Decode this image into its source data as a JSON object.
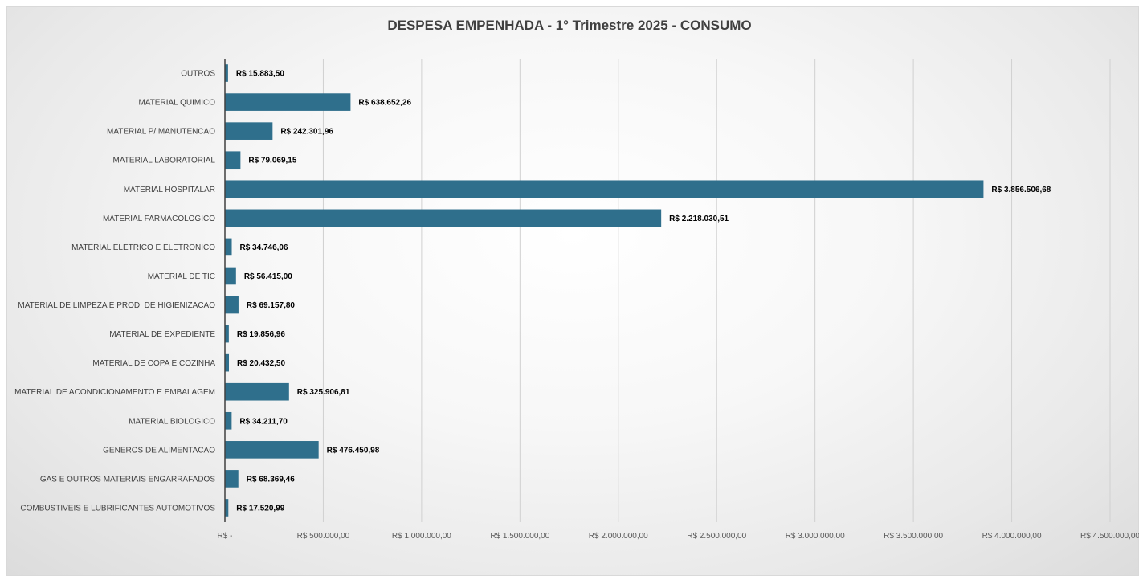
{
  "chart_data": {
    "type": "bar",
    "orientation": "horizontal",
    "title": "DESPESA EMPENHADA  - 1° Trimestre 2025 - CONSUMO",
    "xlabel": "",
    "ylabel": "",
    "xlim": [
      0,
      4500000
    ],
    "grid": true,
    "legend": "none",
    "bar_color": "#2f6f8c",
    "categories": [
      "OUTROS",
      "MATERIAL QUIMICO",
      "MATERIAL P/ MANUTENCAO",
      "MATERIAL LABORATORIAL",
      "MATERIAL HOSPITALAR",
      "MATERIAL FARMACOLOGICO",
      "MATERIAL ELETRICO E ELETRONICO",
      "MATERIAL DE TIC",
      "MATERIAL DE LIMPEZA E PROD. DE HIGIENIZACAO",
      "MATERIAL DE EXPEDIENTE",
      "MATERIAL DE COPA E COZINHA",
      "MATERIAL DE ACONDICIONAMENTO E EMBALAGEM",
      "MATERIAL BIOLOGICO",
      "GENEROS DE ALIMENTACAO",
      "GAS E OUTROS MATERIAIS ENGARRAFADOS",
      "COMBUSTIVEIS E LUBRIFICANTES AUTOMOTIVOS"
    ],
    "values": [
      15883.5,
      638652.26,
      242301.96,
      79069.15,
      3856506.68,
      2218030.51,
      34746.06,
      56415.0,
      69157.8,
      19856.96,
      20432.5,
      325906.81,
      34211.7,
      476450.98,
      68369.46,
      17520.99
    ],
    "data_labels": [
      "R$ 15.883,50",
      "R$ 638.652,26",
      "R$ 242.301,96",
      "R$ 79.069,15",
      "R$ 3.856.506,68",
      "R$ 2.218.030,51",
      "R$ 34.746,06",
      "R$ 56.415,00",
      "R$ 69.157,80",
      "R$ 19.856,96",
      "R$ 20.432,50",
      "R$ 325.906,81",
      "R$ 34.211,70",
      "R$ 476.450,98",
      "R$ 68.369,46",
      "R$ 17.520,99"
    ],
    "x_ticks": [
      0,
      500000,
      1000000,
      1500000,
      2000000,
      2500000,
      3000000,
      3500000,
      4000000,
      4500000
    ],
    "x_tick_labels": [
      "R$ -",
      "R$ 500.000,00",
      "R$ 1.000.000,00",
      "R$ 1.500.000,00",
      "R$ 2.000.000,00",
      "R$ 2.500.000,00",
      "R$ 3.000.000,00",
      "R$ 3.500.000,00",
      "R$ 4.000.000,00",
      "R$ 4.500.000,00"
    ]
  }
}
